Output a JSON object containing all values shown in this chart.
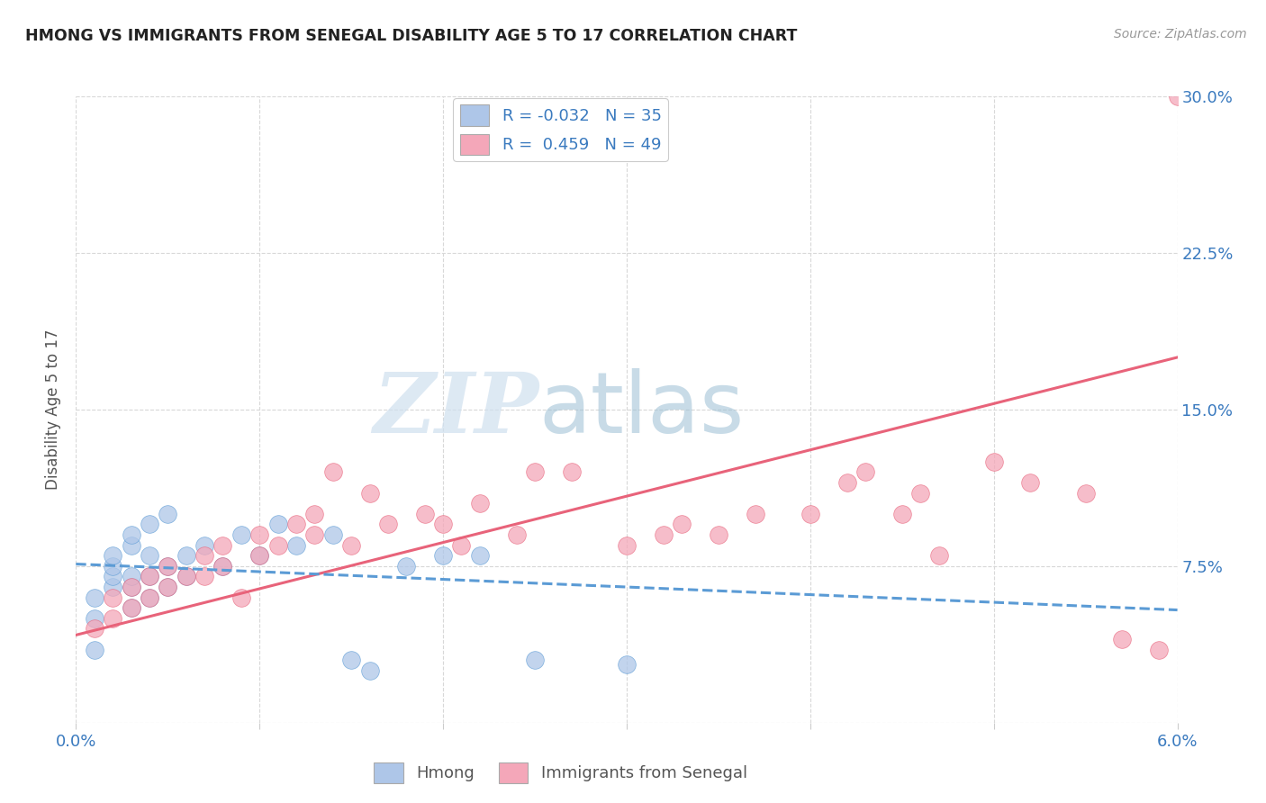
{
  "title": "HMONG VS IMMIGRANTS FROM SENEGAL DISABILITY AGE 5 TO 17 CORRELATION CHART",
  "source": "Source: ZipAtlas.com",
  "ylabel": "Disability Age 5 to 17",
  "xlabel_hmong": "Hmong",
  "xlabel_senegal": "Immigrants from Senegal",
  "xlim": [
    0.0,
    0.06
  ],
  "ylim": [
    0.0,
    0.3
  ],
  "x_ticks": [
    0.0,
    0.01,
    0.02,
    0.03,
    0.04,
    0.05,
    0.06
  ],
  "x_tick_labels": [
    "0.0%",
    "",
    "",
    "",
    "",
    "",
    "6.0%"
  ],
  "y_ticks": [
    0.0,
    0.075,
    0.15,
    0.225,
    0.3
  ],
  "y_tick_labels_right": [
    "",
    "7.5%",
    "15.0%",
    "22.5%",
    "30.0%"
  ],
  "hmong_color": "#aec6e8",
  "senegal_color": "#f4a7b9",
  "hmong_line_color": "#5b9bd5",
  "senegal_line_color": "#e8637a",
  "R_hmong": -0.032,
  "N_hmong": 35,
  "R_senegal": 0.459,
  "N_senegal": 49,
  "background_color": "#ffffff",
  "grid_color": "#d8d8d8",
  "watermark_zip": "ZIP",
  "watermark_atlas": "atlas",
  "hmong_x": [
    0.001,
    0.001,
    0.001,
    0.002,
    0.002,
    0.002,
    0.002,
    0.003,
    0.003,
    0.003,
    0.003,
    0.003,
    0.004,
    0.004,
    0.004,
    0.004,
    0.005,
    0.005,
    0.005,
    0.006,
    0.006,
    0.007,
    0.008,
    0.009,
    0.01,
    0.011,
    0.012,
    0.014,
    0.015,
    0.016,
    0.018,
    0.02,
    0.022,
    0.025,
    0.03
  ],
  "hmong_y": [
    0.035,
    0.05,
    0.06,
    0.065,
    0.07,
    0.075,
    0.08,
    0.055,
    0.065,
    0.07,
    0.085,
    0.09,
    0.06,
    0.07,
    0.08,
    0.095,
    0.065,
    0.075,
    0.1,
    0.07,
    0.08,
    0.085,
    0.075,
    0.09,
    0.08,
    0.095,
    0.085,
    0.09,
    0.03,
    0.025,
    0.075,
    0.08,
    0.08,
    0.03,
    0.028
  ],
  "senegal_x": [
    0.001,
    0.002,
    0.002,
    0.003,
    0.003,
    0.004,
    0.004,
    0.005,
    0.005,
    0.006,
    0.007,
    0.007,
    0.008,
    0.008,
    0.009,
    0.01,
    0.01,
    0.011,
    0.012,
    0.013,
    0.013,
    0.014,
    0.015,
    0.016,
    0.017,
    0.019,
    0.02,
    0.021,
    0.022,
    0.024,
    0.025,
    0.027,
    0.03,
    0.032,
    0.033,
    0.035,
    0.037,
    0.04,
    0.042,
    0.043,
    0.045,
    0.046,
    0.047,
    0.05,
    0.052,
    0.055,
    0.057,
    0.059,
    0.06
  ],
  "senegal_y": [
    0.045,
    0.06,
    0.05,
    0.065,
    0.055,
    0.07,
    0.06,
    0.075,
    0.065,
    0.07,
    0.08,
    0.07,
    0.085,
    0.075,
    0.06,
    0.09,
    0.08,
    0.085,
    0.095,
    0.1,
    0.09,
    0.12,
    0.085,
    0.11,
    0.095,
    0.1,
    0.095,
    0.085,
    0.105,
    0.09,
    0.12,
    0.12,
    0.085,
    0.09,
    0.095,
    0.09,
    0.1,
    0.1,
    0.115,
    0.12,
    0.1,
    0.11,
    0.08,
    0.125,
    0.115,
    0.11,
    0.04,
    0.035,
    0.3
  ],
  "senegal_line_x0": 0.0,
  "senegal_line_y0": 0.042,
  "senegal_line_x1": 0.06,
  "senegal_line_y1": 0.175,
  "hmong_line_x0": 0.0,
  "hmong_line_y0": 0.076,
  "hmong_line_x1": 0.06,
  "hmong_line_y1": 0.054
}
